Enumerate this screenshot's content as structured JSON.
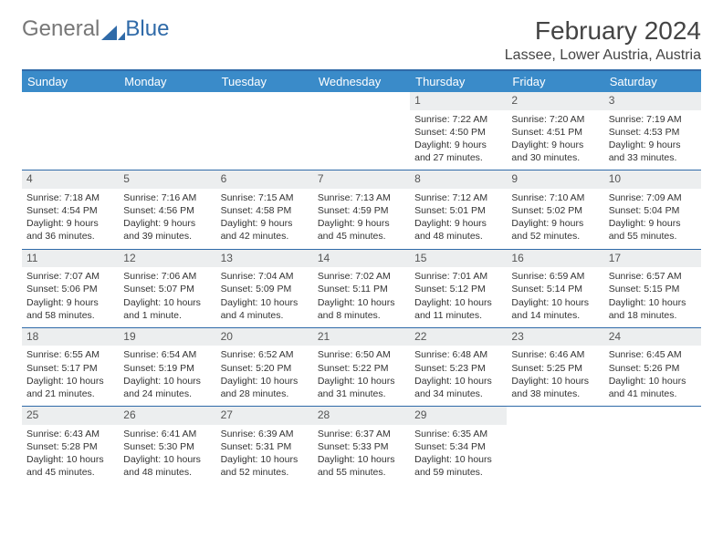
{
  "logo": {
    "text1": "General",
    "text2": "Blue",
    "tri_color": "#2f6aa8"
  },
  "title": "February 2024",
  "location": "Lassee, Lower Austria, Austria",
  "weekdays": [
    "Sunday",
    "Monday",
    "Tuesday",
    "Wednesday",
    "Thursday",
    "Friday",
    "Saturday"
  ],
  "colors": {
    "header_bg": "#3a8bc9",
    "header_text": "#ffffff",
    "rule": "#2f6aa8",
    "daynum_bg": "#eceeef",
    "text": "#333333"
  },
  "weeks": [
    [
      {
        "empty": true
      },
      {
        "empty": true
      },
      {
        "empty": true
      },
      {
        "empty": true
      },
      {
        "day": "1",
        "sunrise": "Sunrise: 7:22 AM",
        "sunset": "Sunset: 4:50 PM",
        "daylight1": "Daylight: 9 hours",
        "daylight2": "and 27 minutes."
      },
      {
        "day": "2",
        "sunrise": "Sunrise: 7:20 AM",
        "sunset": "Sunset: 4:51 PM",
        "daylight1": "Daylight: 9 hours",
        "daylight2": "and 30 minutes."
      },
      {
        "day": "3",
        "sunrise": "Sunrise: 7:19 AM",
        "sunset": "Sunset: 4:53 PM",
        "daylight1": "Daylight: 9 hours",
        "daylight2": "and 33 minutes."
      }
    ],
    [
      {
        "day": "4",
        "sunrise": "Sunrise: 7:18 AM",
        "sunset": "Sunset: 4:54 PM",
        "daylight1": "Daylight: 9 hours",
        "daylight2": "and 36 minutes."
      },
      {
        "day": "5",
        "sunrise": "Sunrise: 7:16 AM",
        "sunset": "Sunset: 4:56 PM",
        "daylight1": "Daylight: 9 hours",
        "daylight2": "and 39 minutes."
      },
      {
        "day": "6",
        "sunrise": "Sunrise: 7:15 AM",
        "sunset": "Sunset: 4:58 PM",
        "daylight1": "Daylight: 9 hours",
        "daylight2": "and 42 minutes."
      },
      {
        "day": "7",
        "sunrise": "Sunrise: 7:13 AM",
        "sunset": "Sunset: 4:59 PM",
        "daylight1": "Daylight: 9 hours",
        "daylight2": "and 45 minutes."
      },
      {
        "day": "8",
        "sunrise": "Sunrise: 7:12 AM",
        "sunset": "Sunset: 5:01 PM",
        "daylight1": "Daylight: 9 hours",
        "daylight2": "and 48 minutes."
      },
      {
        "day": "9",
        "sunrise": "Sunrise: 7:10 AM",
        "sunset": "Sunset: 5:02 PM",
        "daylight1": "Daylight: 9 hours",
        "daylight2": "and 52 minutes."
      },
      {
        "day": "10",
        "sunrise": "Sunrise: 7:09 AM",
        "sunset": "Sunset: 5:04 PM",
        "daylight1": "Daylight: 9 hours",
        "daylight2": "and 55 minutes."
      }
    ],
    [
      {
        "day": "11",
        "sunrise": "Sunrise: 7:07 AM",
        "sunset": "Sunset: 5:06 PM",
        "daylight1": "Daylight: 9 hours",
        "daylight2": "and 58 minutes."
      },
      {
        "day": "12",
        "sunrise": "Sunrise: 7:06 AM",
        "sunset": "Sunset: 5:07 PM",
        "daylight1": "Daylight: 10 hours",
        "daylight2": "and 1 minute."
      },
      {
        "day": "13",
        "sunrise": "Sunrise: 7:04 AM",
        "sunset": "Sunset: 5:09 PM",
        "daylight1": "Daylight: 10 hours",
        "daylight2": "and 4 minutes."
      },
      {
        "day": "14",
        "sunrise": "Sunrise: 7:02 AM",
        "sunset": "Sunset: 5:11 PM",
        "daylight1": "Daylight: 10 hours",
        "daylight2": "and 8 minutes."
      },
      {
        "day": "15",
        "sunrise": "Sunrise: 7:01 AM",
        "sunset": "Sunset: 5:12 PM",
        "daylight1": "Daylight: 10 hours",
        "daylight2": "and 11 minutes."
      },
      {
        "day": "16",
        "sunrise": "Sunrise: 6:59 AM",
        "sunset": "Sunset: 5:14 PM",
        "daylight1": "Daylight: 10 hours",
        "daylight2": "and 14 minutes."
      },
      {
        "day": "17",
        "sunrise": "Sunrise: 6:57 AM",
        "sunset": "Sunset: 5:15 PM",
        "daylight1": "Daylight: 10 hours",
        "daylight2": "and 18 minutes."
      }
    ],
    [
      {
        "day": "18",
        "sunrise": "Sunrise: 6:55 AM",
        "sunset": "Sunset: 5:17 PM",
        "daylight1": "Daylight: 10 hours",
        "daylight2": "and 21 minutes."
      },
      {
        "day": "19",
        "sunrise": "Sunrise: 6:54 AM",
        "sunset": "Sunset: 5:19 PM",
        "daylight1": "Daylight: 10 hours",
        "daylight2": "and 24 minutes."
      },
      {
        "day": "20",
        "sunrise": "Sunrise: 6:52 AM",
        "sunset": "Sunset: 5:20 PM",
        "daylight1": "Daylight: 10 hours",
        "daylight2": "and 28 minutes."
      },
      {
        "day": "21",
        "sunrise": "Sunrise: 6:50 AM",
        "sunset": "Sunset: 5:22 PM",
        "daylight1": "Daylight: 10 hours",
        "daylight2": "and 31 minutes."
      },
      {
        "day": "22",
        "sunrise": "Sunrise: 6:48 AM",
        "sunset": "Sunset: 5:23 PM",
        "daylight1": "Daylight: 10 hours",
        "daylight2": "and 34 minutes."
      },
      {
        "day": "23",
        "sunrise": "Sunrise: 6:46 AM",
        "sunset": "Sunset: 5:25 PM",
        "daylight1": "Daylight: 10 hours",
        "daylight2": "and 38 minutes."
      },
      {
        "day": "24",
        "sunrise": "Sunrise: 6:45 AM",
        "sunset": "Sunset: 5:26 PM",
        "daylight1": "Daylight: 10 hours",
        "daylight2": "and 41 minutes."
      }
    ],
    [
      {
        "day": "25",
        "sunrise": "Sunrise: 6:43 AM",
        "sunset": "Sunset: 5:28 PM",
        "daylight1": "Daylight: 10 hours",
        "daylight2": "and 45 minutes."
      },
      {
        "day": "26",
        "sunrise": "Sunrise: 6:41 AM",
        "sunset": "Sunset: 5:30 PM",
        "daylight1": "Daylight: 10 hours",
        "daylight2": "and 48 minutes."
      },
      {
        "day": "27",
        "sunrise": "Sunrise: 6:39 AM",
        "sunset": "Sunset: 5:31 PM",
        "daylight1": "Daylight: 10 hours",
        "daylight2": "and 52 minutes."
      },
      {
        "day": "28",
        "sunrise": "Sunrise: 6:37 AM",
        "sunset": "Sunset: 5:33 PM",
        "daylight1": "Daylight: 10 hours",
        "daylight2": "and 55 minutes."
      },
      {
        "day": "29",
        "sunrise": "Sunrise: 6:35 AM",
        "sunset": "Sunset: 5:34 PM",
        "daylight1": "Daylight: 10 hours",
        "daylight2": "and 59 minutes."
      },
      {
        "empty": true
      },
      {
        "empty": true
      }
    ]
  ]
}
